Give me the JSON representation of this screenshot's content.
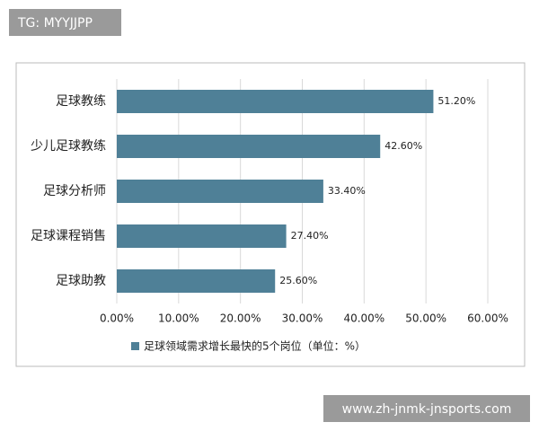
{
  "watermark_top": "TG: MYYJJPP",
  "watermark_bottom": "www.zh-jnmk-jnsports.com",
  "chart_data": {
    "type": "hbar",
    "categories": [
      "足球教练",
      "少儿足球教练",
      "足球分析师",
      "足球课程销售",
      "足球助教"
    ],
    "series": [
      {
        "name": "足球领域需求增长最快的5个岗位（单位：%）",
        "color": "#4f8097",
        "values": [
          51.2,
          42.6,
          33.4,
          27.4,
          25.6
        ],
        "value_labels": [
          "51.20%",
          "42.60%",
          "33.40%",
          "27.40%",
          "25.60%"
        ]
      }
    ],
    "xlim": [
      0,
      60
    ],
    "xticks": [
      {
        "value": 0,
        "label": "0.00%"
      },
      {
        "value": 10,
        "label": "10.00%"
      },
      {
        "value": 20,
        "label": "20.00%"
      },
      {
        "value": 30,
        "label": "30.00%"
      },
      {
        "value": 40,
        "label": "40.00%"
      },
      {
        "value": 50,
        "label": "50.00%"
      },
      {
        "value": 60,
        "label": "60.00%"
      }
    ],
    "grid": true,
    "legend": "bottom"
  }
}
